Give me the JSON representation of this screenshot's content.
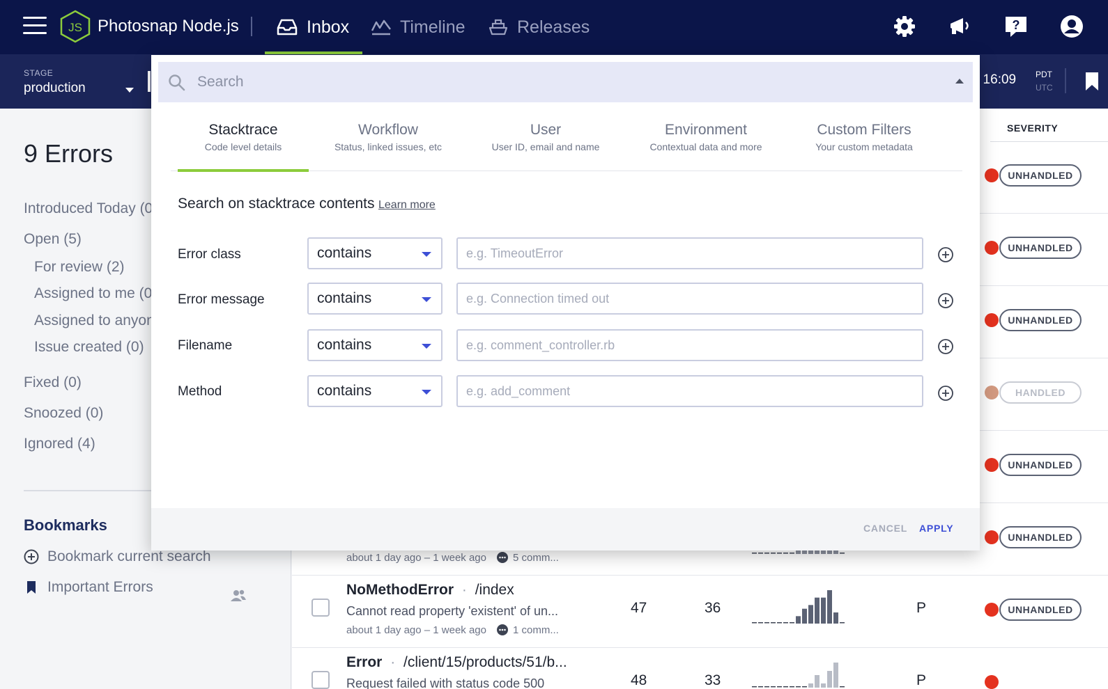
{
  "nav": {
    "project_name": "Photosnap Node.js",
    "logo_text": "JS",
    "items": [
      {
        "label": "Inbox",
        "icon": "inbox-icon",
        "active": true
      },
      {
        "label": "Timeline",
        "icon": "timeline-icon",
        "active": false
      },
      {
        "label": "Releases",
        "icon": "releases-icon",
        "active": false
      }
    ],
    "icons": [
      "settings-gear-icon",
      "announcements-megaphone-icon",
      "help-icon",
      "account-icon"
    ],
    "accent_color": "#8ccc3c",
    "background_color": "#0b1549"
  },
  "subbar": {
    "stage_label": "STAGE",
    "stage_value": "production",
    "time_value": ", 16:09",
    "tz_primary": "PDT",
    "tz_secondary": "UTC"
  },
  "sidebar": {
    "title": "9 Errors",
    "filters": [
      {
        "label": "Introduced Today (0"
      },
      {
        "label": "Open (5)"
      },
      {
        "label": "For review (2)"
      },
      {
        "label": "Assigned to me (0)"
      },
      {
        "label": "Assigned to anyon"
      },
      {
        "label": "Issue created (0)"
      },
      {
        "label": "Fixed (0)"
      },
      {
        "label": "Snoozed (0)"
      },
      {
        "label": "Ignored (4)"
      }
    ],
    "bookmarks_title": "Bookmarks",
    "bookmark_current": "Bookmark current search",
    "bookmark_items": [
      {
        "label": "Important Errors"
      }
    ]
  },
  "list": {
    "severity_header": "SEVERITY",
    "severity_badges": [
      "UNHANDLED",
      "UNHANDLED",
      "UNHANDLED",
      "HANDLED",
      "UNHANDLED",
      "UNHANDLED",
      "UNHANDLED"
    ],
    "rows": [
      {
        "meta_time": "about 1 day ago – 1 week ago",
        "meta_comments": "5 comm..."
      },
      {
        "error_class": "NoMethodError",
        "context": "/index",
        "message": "Cannot read property 'existent' of un...",
        "meta_time": "about 1 day ago – 1 week ago",
        "meta_comments": "1 comm...",
        "events": "47",
        "users": "36",
        "stage_short": "P"
      },
      {
        "error_class": "Error",
        "context": "/client/15/products/51/b...",
        "message": "Request failed with status code 500",
        "events": "48",
        "users": "33",
        "stage_short": "P"
      }
    ],
    "trend_row1": [
      0,
      0,
      0,
      0,
      0,
      0,
      0,
      3,
      3,
      3,
      3,
      3,
      3,
      3,
      0
    ],
    "trend_row2": [
      0,
      0,
      0,
      0,
      0,
      0,
      0,
      2,
      4,
      5,
      7,
      7,
      9,
      3,
      0
    ],
    "trend_row3": [
      0,
      0,
      0,
      0,
      0,
      0,
      0,
      0,
      0,
      1,
      3,
      1,
      4,
      6,
      0
    ]
  },
  "search": {
    "placeholder": "Search",
    "tabs": [
      {
        "title": "Stacktrace",
        "subtitle": "Code level details",
        "active": true
      },
      {
        "title": "Workflow",
        "subtitle": "Status, linked issues, etc",
        "active": false
      },
      {
        "title": "User",
        "subtitle": "User ID, email and name",
        "active": false
      },
      {
        "title": "Environment",
        "subtitle": "Contextual data and more",
        "active": false
      },
      {
        "title": "Custom Filters",
        "subtitle": "Your custom metadata",
        "active": false
      }
    ],
    "section_title": "Search on stacktrace contents",
    "learn_more": "Learn more",
    "filters": [
      {
        "label": "Error class",
        "operator": "contains",
        "placeholder": "e.g. TimeoutError"
      },
      {
        "label": "Error message",
        "operator": "contains",
        "placeholder": "e.g. Connection timed out"
      },
      {
        "label": "Filename",
        "operator": "contains",
        "placeholder": "e.g. comment_controller.rb"
      },
      {
        "label": "Method",
        "operator": "contains",
        "placeholder": "e.g. add_comment"
      }
    ],
    "cancel_label": "CANCEL",
    "apply_label": "APPLY"
  }
}
